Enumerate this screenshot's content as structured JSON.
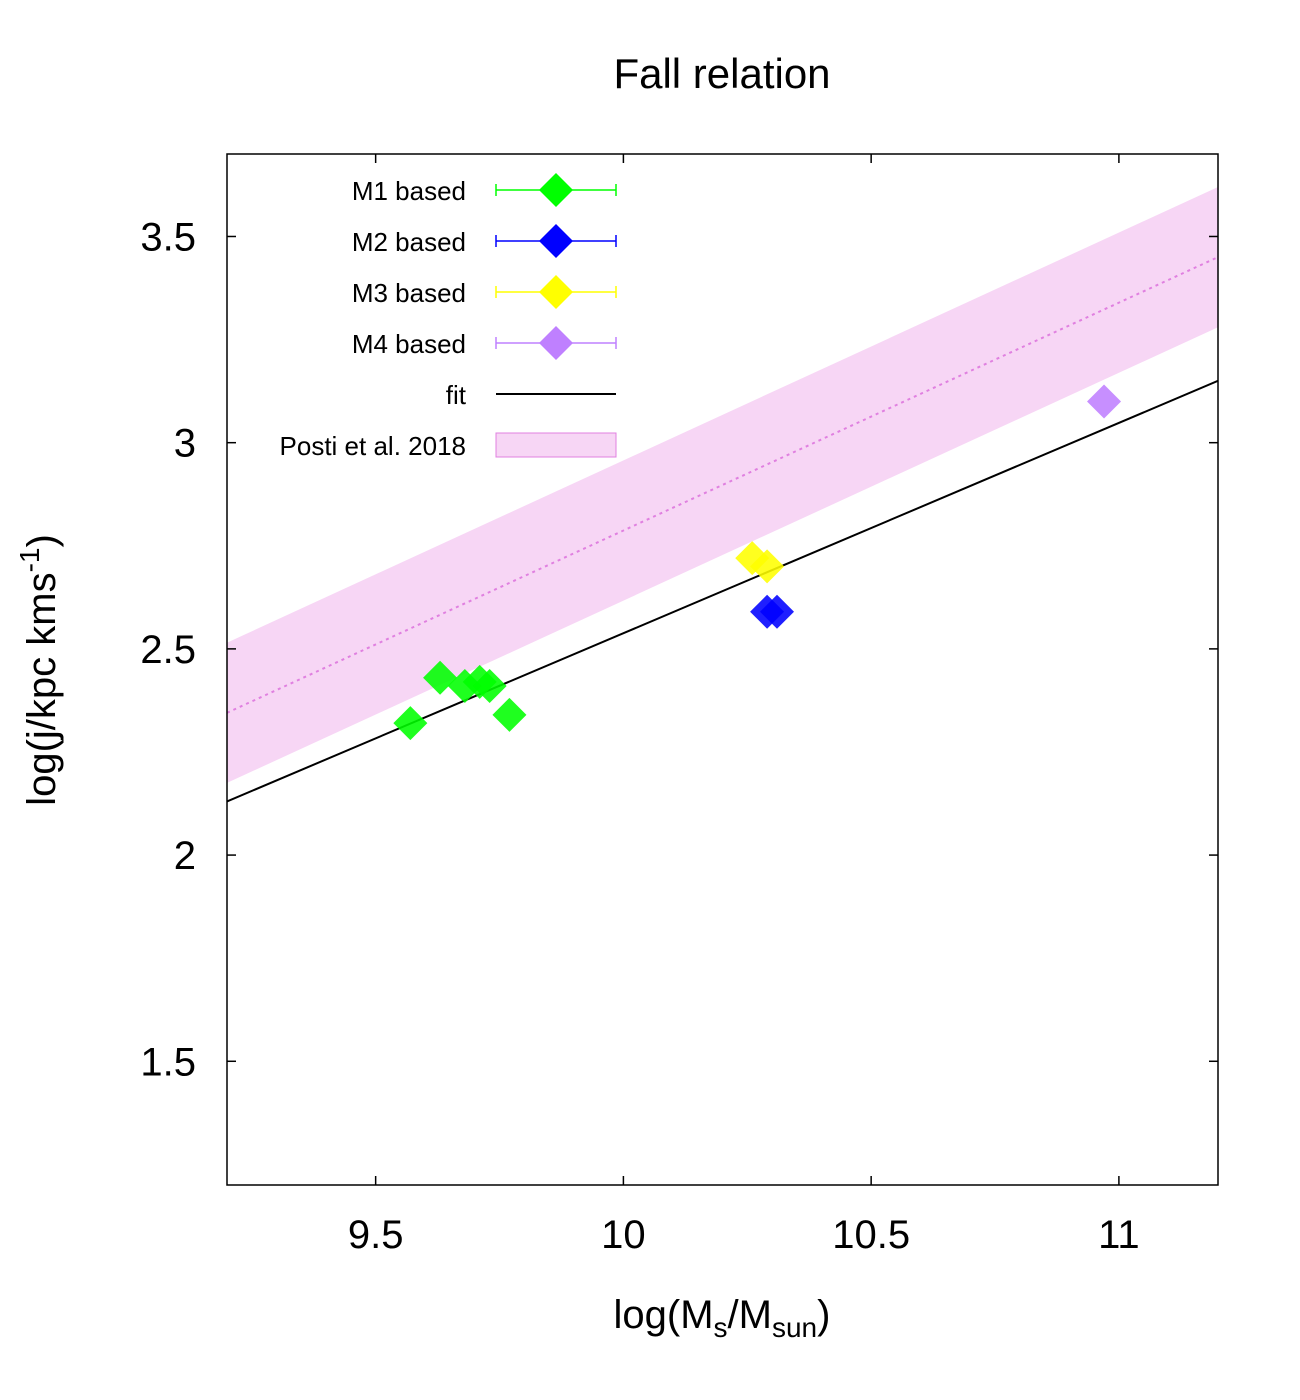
{
  "chart_data": {
    "type": "scatter",
    "title": "Fall relation",
    "xlabel": {
      "base": "log(M",
      "sub1": "s",
      "mid": "/M",
      "sub2": "sun",
      "end": ")"
    },
    "ylabel": {
      "base": "log(j/kpc kms",
      "sup": "-1",
      "end": ")"
    },
    "xlim": [
      9.2,
      11.2
    ],
    "ylim": [
      1.2,
      3.7
    ],
    "xticks": [
      9.5,
      10,
      10.5,
      11
    ],
    "xtick_labels": [
      "9.5",
      "10",
      "10.5",
      "11"
    ],
    "yticks": [
      1.5,
      2,
      2.5,
      3,
      3.5
    ],
    "ytick_labels": [
      "1.5",
      "2",
      "2.5",
      "3",
      "3.5"
    ],
    "legend_position": "top-left",
    "series": [
      {
        "name": "M1 based",
        "color": "#00ff00",
        "marker": "diamond",
        "points": [
          [
            9.57,
            2.32
          ],
          [
            9.63,
            2.43
          ],
          [
            9.68,
            2.41
          ],
          [
            9.71,
            2.42
          ],
          [
            9.73,
            2.41
          ],
          [
            9.77,
            2.34
          ]
        ]
      },
      {
        "name": "M2 based",
        "color": "#0000ff",
        "marker": "diamond",
        "points": [
          [
            10.29,
            2.59
          ],
          [
            10.31,
            2.59
          ]
        ]
      },
      {
        "name": "M3 based",
        "color": "#ffff00",
        "marker": "diamond",
        "points": [
          [
            10.26,
            2.72
          ],
          [
            10.29,
            2.7
          ]
        ]
      },
      {
        "name": "M4 based",
        "color": "#bf80ff",
        "marker": "diamond",
        "points": [
          [
            10.97,
            3.1
          ]
        ]
      }
    ],
    "fit": {
      "name": "fit",
      "color": "#000000",
      "x": [
        9.2,
        11.2
      ],
      "y": [
        2.13,
        3.15
      ]
    },
    "band": {
      "name": "Posti et al. 2018",
      "fill": "#f7d6f5",
      "line_color": "#e080e0",
      "x": [
        9.2,
        11.2
      ],
      "center": [
        2.345,
        3.45
      ],
      "half_width": 0.17
    }
  }
}
